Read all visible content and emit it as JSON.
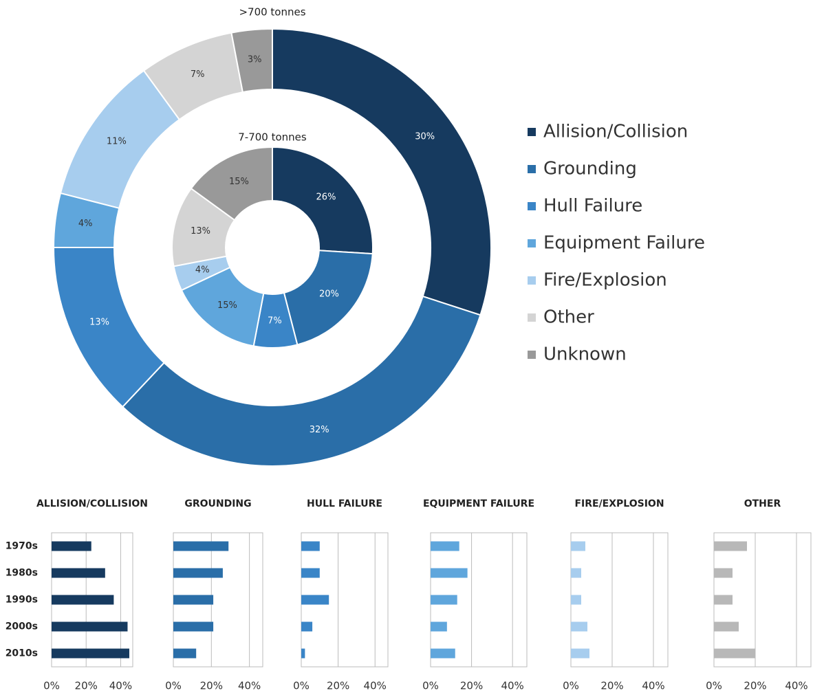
{
  "chart_data": [
    {
      "type": "donut",
      "categories": [
        "Allision/Collision",
        "Grounding",
        "Hull Failure",
        "Equipment Failure",
        "Fire/Explosion",
        "Other",
        "Unknown"
      ],
      "colors": [
        "#163a5f",
        "#2a6ea8",
        "#3a85c7",
        "#5fa6dc",
        "#a7cdee",
        "#d4d4d4",
        "#999999"
      ],
      "series": [
        {
          "name": ">700 tonnes",
          "values": [
            30,
            32,
            13,
            4,
            11,
            7,
            3
          ],
          "value_labels": [
            "30%",
            "32%",
            "13%",
            "4%",
            "11%",
            "7%",
            "3%"
          ]
        },
        {
          "name": "7-700 tonnes",
          "values": [
            26,
            20,
            7,
            15,
            4,
            13,
            15
          ],
          "value_labels": [
            "26%",
            "20%",
            "7%",
            "15%",
            "4%",
            "13%",
            "15%"
          ]
        }
      ]
    },
    {
      "type": "bar",
      "orientation": "horizontal",
      "categories": [
        "1970s",
        "1980s",
        "1990s",
        "2000s",
        "2010s"
      ],
      "xlim": [
        0,
        47
      ],
      "xticks": [
        {
          "value": 0,
          "label": "0%"
        },
        {
          "value": 20,
          "label": "20%"
        },
        {
          "value": 40,
          "label": "40%"
        }
      ],
      "grid": true,
      "panels": [
        {
          "title": "ALLISION/COLLISION",
          "color": "#163a5f",
          "values": [
            23,
            31,
            36,
            44,
            45
          ]
        },
        {
          "title": "GROUNDING",
          "color": "#2a6ea8",
          "values": [
            29,
            26,
            21,
            21,
            12
          ]
        },
        {
          "title": "HULL FAILURE",
          "color": "#3a85c7",
          "values": [
            10,
            10,
            15,
            6,
            2
          ]
        },
        {
          "title": "EQUIPMENT FAILURE",
          "color": "#5fa6dc",
          "values": [
            14,
            18,
            13,
            8,
            12
          ]
        },
        {
          "title": "FIRE/EXPLOSION",
          "color": "#a7cdee",
          "values": [
            7,
            5,
            5,
            8,
            9
          ]
        },
        {
          "title": "OTHER",
          "color": "#b8b8b8",
          "values": [
            16,
            9,
            9,
            12,
            20
          ]
        }
      ]
    }
  ]
}
